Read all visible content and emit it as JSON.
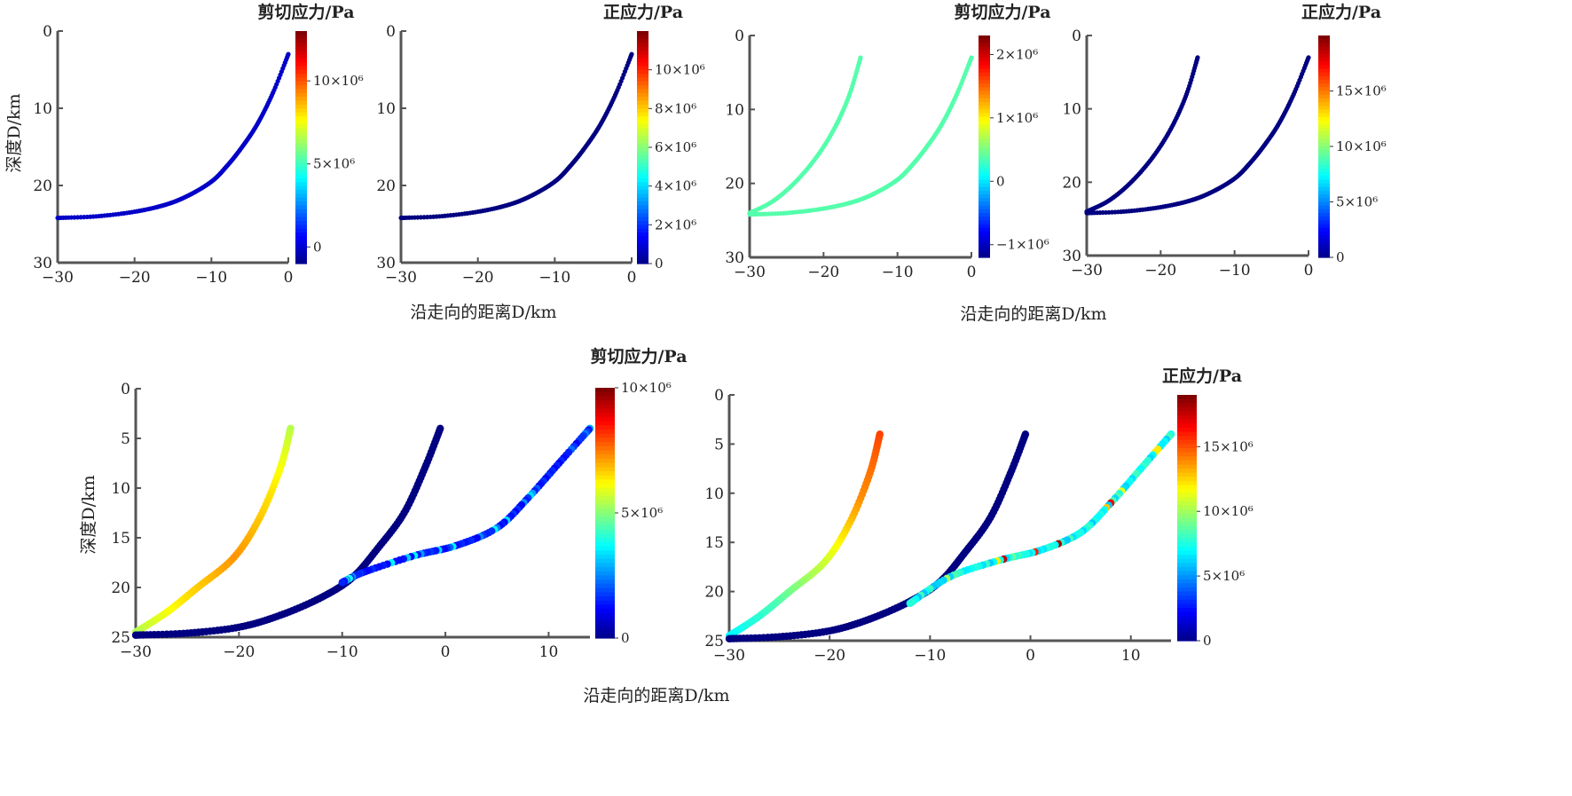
{
  "figure": {
    "top_xlabel": "沿走向的距离D/km",
    "bottom_xlabel": "沿走向的距离D/km",
    "ylabel": "深度D/km"
  },
  "chart_data": [
    {
      "type": "scatter",
      "title": "剪切应力/Pa",
      "xlim": [
        -30,
        0
      ],
      "ylim": [
        30,
        0
      ],
      "grid": false,
      "xticks": [
        "−30",
        "−20",
        "−10",
        "0"
      ],
      "yticks": [
        "0",
        "10",
        "20",
        "30"
      ],
      "colorbar": {
        "range": [
          -1000000,
          13000000
        ],
        "ticks": [
          {
            "label": "0",
            "v": 0
          },
          {
            "label": "5×10⁶",
            "v": 5000000
          },
          {
            "label": "10×10⁶",
            "v": 10000000
          }
        ]
      },
      "series": [
        {
          "color_mode": "uniform",
          "value": 0,
          "points": [
            [
              0,
              3
            ],
            [
              -2,
              8
            ],
            [
              -4,
              12
            ],
            [
              -6,
              15
            ],
            [
              -8,
              17.5
            ],
            [
              -10,
              19.5
            ],
            [
              -13,
              21.3
            ],
            [
              -16,
              22.5
            ],
            [
              -20,
              23.4
            ],
            [
              -25,
              24
            ],
            [
              -30,
              24.2
            ]
          ]
        }
      ]
    },
    {
      "type": "scatter",
      "title": "正应力/Pa",
      "xlim": [
        -30,
        0
      ],
      "ylim": [
        30,
        0
      ],
      "grid": false,
      "xticks": [
        "−30",
        "−20",
        "−10",
        "0"
      ],
      "yticks": [
        "0",
        "10",
        "20",
        "30"
      ],
      "colorbar": {
        "range": [
          0,
          12000000
        ],
        "ticks": [
          {
            "label": "0",
            "v": 0
          },
          {
            "label": "2×10⁶",
            "v": 2000000
          },
          {
            "label": "4×10⁶",
            "v": 4000000
          },
          {
            "label": "6×10⁶",
            "v": 6000000
          },
          {
            "label": "8×10⁶",
            "v": 8000000
          },
          {
            "label": "10×10⁶",
            "v": 10000000
          }
        ]
      },
      "series": [
        {
          "color_mode": "uniform",
          "value": 0,
          "points": [
            [
              0,
              3
            ],
            [
              -2,
              8
            ],
            [
              -4,
              12
            ],
            [
              -6,
              15
            ],
            [
              -8,
              17.5
            ],
            [
              -10,
              19.5
            ],
            [
              -13,
              21.3
            ],
            [
              -16,
              22.5
            ],
            [
              -20,
              23.4
            ],
            [
              -25,
              24
            ],
            [
              -30,
              24.2
            ]
          ]
        }
      ]
    },
    {
      "type": "scatter",
      "title": "剪切应力/Pa",
      "xlim": [
        -30,
        0
      ],
      "ylim": [
        30,
        0
      ],
      "grid": false,
      "xticks": [
        "−30",
        "−20",
        "−10",
        "0"
      ],
      "yticks": [
        "0",
        "10",
        "20",
        "30"
      ],
      "colorbar": {
        "range": [
          -1200000,
          2300000
        ],
        "ticks": [
          {
            "label": "−1×10⁶",
            "v": -1000000
          },
          {
            "label": "0",
            "v": 0
          },
          {
            "label": "1×10⁶",
            "v": 1000000
          },
          {
            "label": "2×10⁶",
            "v": 2000000
          }
        ]
      },
      "series": [
        {
          "color_mode": "uniform",
          "value": 400000,
          "points": [
            [
              -15,
              3
            ],
            [
              -16.5,
              8
            ],
            [
              -18.5,
              12.5
            ],
            [
              -21,
              16.5
            ],
            [
              -24,
              20
            ],
            [
              -27,
              22.5
            ],
            [
              -30,
              24
            ]
          ]
        },
        {
          "color_mode": "uniform",
          "value": 400000,
          "points": [
            [
              0,
              3
            ],
            [
              -2,
              8
            ],
            [
              -4,
              12
            ],
            [
              -6,
              15
            ],
            [
              -8,
              17.5
            ],
            [
              -10,
              19.5
            ],
            [
              -13,
              21.3
            ],
            [
              -16,
              22.5
            ],
            [
              -20,
              23.4
            ],
            [
              -25,
              24
            ],
            [
              -30,
              24.2
            ]
          ]
        }
      ]
    },
    {
      "type": "scatter",
      "title": "正应力/Pa",
      "xlim": [
        -30,
        0
      ],
      "ylim": [
        30,
        0
      ],
      "grid": false,
      "xticks": [
        "−30",
        "−20",
        "−10",
        "0"
      ],
      "yticks": [
        "0",
        "10",
        "20",
        "30"
      ],
      "colorbar": {
        "range": [
          0,
          20000000
        ],
        "ticks": [
          {
            "label": "0",
            "v": 0
          },
          {
            "label": "5×10⁶",
            "v": 5000000
          },
          {
            "label": "10×10⁶",
            "v": 10000000
          },
          {
            "label": "15×10⁶",
            "v": 15000000
          }
        ]
      },
      "series": [
        {
          "color_mode": "uniform",
          "value": 0,
          "points": [
            [
              -15,
              3
            ],
            [
              -16.5,
              8
            ],
            [
              -18.5,
              12.5
            ],
            [
              -21,
              16.5
            ],
            [
              -24,
              20
            ],
            [
              -27,
              22.5
            ],
            [
              -30,
              24
            ]
          ]
        },
        {
          "color_mode": "uniform",
          "value": 0,
          "points": [
            [
              0,
              3
            ],
            [
              -2,
              8
            ],
            [
              -4,
              12
            ],
            [
              -6,
              15
            ],
            [
              -8,
              17.5
            ],
            [
              -10,
              19.5
            ],
            [
              -13,
              21.3
            ],
            [
              -16,
              22.5
            ],
            [
              -20,
              23.4
            ],
            [
              -25,
              24
            ],
            [
              -30,
              24.2
            ]
          ]
        }
      ]
    },
    {
      "type": "scatter",
      "title": "剪切应力/Pa",
      "xlim": [
        -30,
        14
      ],
      "ylim": [
        25,
        0
      ],
      "grid": false,
      "xticks": [
        "−30",
        "−20",
        "−10",
        "0",
        "10"
      ],
      "yticks": [
        "0",
        "5",
        "10",
        "15",
        "20",
        "25"
      ],
      "colorbar": {
        "range": [
          0,
          10000000
        ],
        "ticks": [
          {
            "label": "0",
            "v": 0
          },
          {
            "label": "5×10⁶",
            "v": 5000000
          },
          {
            "label": "10×10⁶",
            "v": 10000000
          }
        ]
      },
      "series": [
        {
          "color_mode": "gradient",
          "values": [
            5500000,
            6500000,
            7300000,
            6500000,
            5500000
          ],
          "points": [
            [
              -15,
              4
            ],
            [
              -16,
              8
            ],
            [
              -18,
              13
            ],
            [
              -20.5,
              17
            ],
            [
              -24,
              20
            ],
            [
              -27,
              22.5
            ],
            [
              -30,
              24.5
            ]
          ]
        },
        {
          "color_mode": "uniform",
          "value": 0,
          "points": [
            [
              -0.5,
              4
            ],
            [
              -2,
              8
            ],
            [
              -4,
              12.5
            ],
            [
              -6.5,
              16
            ],
            [
              -9,
              19
            ],
            [
              -12,
              21
            ],
            [
              -16,
              22.8
            ],
            [
              -20,
              24
            ],
            [
              -25,
              24.6
            ],
            [
              -30,
              24.8
            ]
          ]
        },
        {
          "color_mode": "mixed",
          "value": 1200000,
          "noise": 3000000,
          "points": [
            [
              14,
              4
            ],
            [
              11,
              7.5
            ],
            [
              8,
              11
            ],
            [
              5,
              14
            ],
            [
              1,
              15.8
            ],
            [
              -3,
              16.8
            ],
            [
              -8,
              18.5
            ],
            [
              -10,
              19.5
            ]
          ]
        }
      ]
    },
    {
      "type": "scatter",
      "title": "正应力/Pa",
      "xlim": [
        -30,
        14
      ],
      "ylim": [
        25,
        0
      ],
      "grid": false,
      "xticks": [
        "−30",
        "−20",
        "−10",
        "0",
        "10"
      ],
      "yticks": [
        "0",
        "5",
        "10",
        "15",
        "20",
        "25"
      ],
      "colorbar": {
        "range": [
          0,
          19000000
        ],
        "ticks": [
          {
            "label": "0",
            "v": 0
          },
          {
            "label": "5×10⁶",
            "v": 5000000
          },
          {
            "label": "10×10⁶",
            "v": 10000000
          },
          {
            "label": "15×10⁶",
            "v": 15000000
          }
        ]
      },
      "series": [
        {
          "color_mode": "gradient",
          "values": [
            15500000,
            14000000,
            11000000,
            8500000,
            7000000
          ],
          "points": [
            [
              -15,
              4
            ],
            [
              -16,
              8
            ],
            [
              -18,
              13
            ],
            [
              -20.5,
              17
            ],
            [
              -24,
              20
            ],
            [
              -27,
              22.5
            ],
            [
              -30,
              24.5
            ]
          ]
        },
        {
          "color_mode": "uniform",
          "value": 0,
          "points": [
            [
              -0.5,
              4
            ],
            [
              -2,
              8
            ],
            [
              -4,
              12.5
            ],
            [
              -6.5,
              16
            ],
            [
              -9,
              19
            ],
            [
              -12,
              21
            ],
            [
              -16,
              22.8
            ],
            [
              -20,
              24
            ],
            [
              -25,
              24.6
            ],
            [
              -30,
              24.8
            ]
          ]
        },
        {
          "color_mode": "mixed",
          "value": 6000000,
          "noise": 13000000,
          "points": [
            [
              14,
              4
            ],
            [
              11,
              7.5
            ],
            [
              8,
              11
            ],
            [
              5,
              14
            ],
            [
              1,
              15.8
            ],
            [
              -3,
              16.8
            ],
            [
              -8,
              18.5
            ],
            [
              -12,
              21.2
            ]
          ]
        }
      ]
    }
  ]
}
